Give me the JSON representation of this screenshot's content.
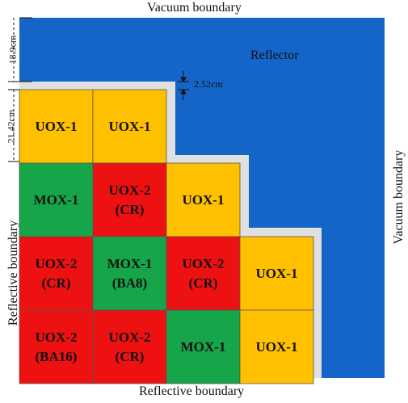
{
  "boundaries": {
    "top": "Vacuum boundary",
    "right": "Vacuum boundary",
    "bottom": "Reflective boundary",
    "left": "Reflective boundary"
  },
  "reflector_label": "Reflector",
  "dimensions": {
    "reflector_thickness": "18.9cm",
    "assembly_pitch": "21.42cm",
    "gap_width": "2.52cm"
  },
  "assemblies": [
    {
      "row": 0,
      "col": 0,
      "line1": "UOX-1",
      "line2": "",
      "type": "uox"
    },
    {
      "row": 0,
      "col": 1,
      "line1": "UOX-1",
      "line2": "",
      "type": "uox"
    },
    {
      "row": 1,
      "col": 0,
      "line1": "MOX-1",
      "line2": "",
      "type": "mox"
    },
    {
      "row": 1,
      "col": 1,
      "line1": "UOX-2",
      "line2": "(CR)",
      "type": "uox2"
    },
    {
      "row": 1,
      "col": 2,
      "line1": "UOX-1",
      "line2": "",
      "type": "uox"
    },
    {
      "row": 2,
      "col": 0,
      "line1": "UOX-2",
      "line2": "(CR)",
      "type": "uox2"
    },
    {
      "row": 2,
      "col": 1,
      "line1": "MOX-1",
      "line2": "(BA8)",
      "type": "mox"
    },
    {
      "row": 2,
      "col": 2,
      "line1": "UOX-2",
      "line2": "(CR)",
      "type": "uox2"
    },
    {
      "row": 2,
      "col": 3,
      "line1": "UOX-1",
      "line2": "",
      "type": "uox"
    },
    {
      "row": 3,
      "col": 0,
      "line1": "UOX-2",
      "line2": "(BA16)",
      "type": "uox2"
    },
    {
      "row": 3,
      "col": 1,
      "line1": "UOX-2",
      "line2": "(CR)",
      "type": "uox2"
    },
    {
      "row": 3,
      "col": 2,
      "line1": "MOX-1",
      "line2": "",
      "type": "mox"
    },
    {
      "row": 3,
      "col": 3,
      "line1": "UOX-1",
      "line2": "",
      "type": "uox"
    }
  ],
  "colors": {
    "reflector": "#1565c8",
    "gap": "#e0e0e0",
    "uox": "#ffc000",
    "uox2": "#ee1111",
    "mox": "#17a54a"
  }
}
